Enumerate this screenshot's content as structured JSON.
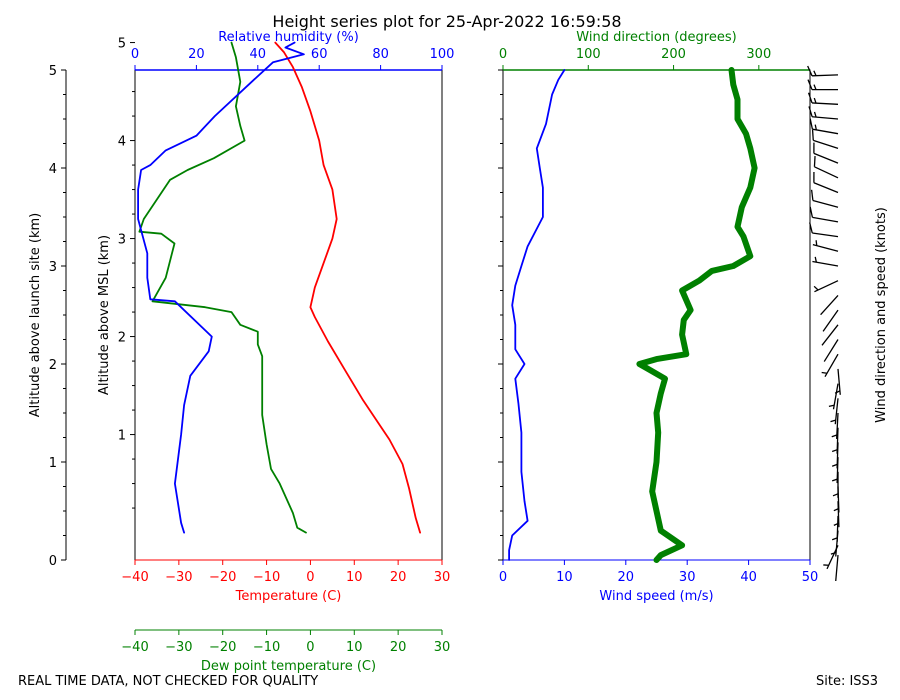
{
  "footer": {
    "left": "REAL TIME DATA, NOT CHECKED FOR QUALITY",
    "right": "Site: ISS3"
  },
  "colors": {
    "temp": "#ff0000",
    "dew": "#008000",
    "rh": "#0000ff",
    "wspd": "#0000ff",
    "wdir": "#008000",
    "barb": "#000000"
  },
  "chart_data": [
    {
      "type": "line",
      "title": "Height series plot for 25-Apr-2022 16:59:58",
      "axes": {
        "agl": {
          "label": "Altitude above launch site (km)",
          "ylim": [
            0,
            5
          ],
          "ticks": [
            0,
            1,
            2,
            3,
            4,
            5
          ]
        },
        "msl": {
          "label": "Altitude above MSL (km)",
          "ylim": [
            -0.28,
            4.72
          ],
          "ticks": [
            1,
            2,
            3,
            4,
            5
          ]
        },
        "temp": {
          "label": "Temperature (C)",
          "xlim": [
            -40,
            30
          ],
          "ticks": [
            -40,
            -30,
            -20,
            -10,
            0,
            10,
            20,
            30
          ]
        },
        "dew": {
          "label": "Dew point temperature (C)",
          "xlim": [
            -40,
            30
          ],
          "ticks": [
            -40,
            -30,
            -20,
            -10,
            0,
            10,
            20,
            30
          ]
        },
        "rh": {
          "label": "Relative humidity (%)",
          "xlim": [
            0,
            100
          ],
          "ticks": [
            0,
            20,
            40,
            60,
            80,
            100
          ]
        }
      },
      "series": [
        {
          "name": "Temperature",
          "axis": "temp",
          "points": [
            [
              25,
              0
            ],
            [
              24,
              0.15
            ],
            [
              22.5,
              0.45
            ],
            [
              21,
              0.7
            ],
            [
              18,
              0.95
            ],
            [
              12,
              1.35
            ],
            [
              8,
              1.65
            ],
            [
              4,
              1.95
            ],
            [
              1,
              2.2
            ],
            [
              0,
              2.3
            ],
            [
              1,
              2.5
            ],
            [
              3,
              2.75
            ],
            [
              5,
              3.0
            ],
            [
              6,
              3.2
            ],
            [
              5,
              3.5
            ],
            [
              3,
              3.75
            ],
            [
              2,
              4.0
            ],
            [
              0,
              4.3
            ],
            [
              -2,
              4.55
            ],
            [
              -4,
              4.75
            ],
            [
              -6,
              4.9
            ],
            [
              -8,
              5.0
            ]
          ]
        },
        {
          "name": "Dew point",
          "axis": "dew",
          "points": [
            [
              -1,
              0
            ],
            [
              -3,
              0.05
            ],
            [
              -4,
              0.2
            ],
            [
              -7,
              0.5
            ],
            [
              -9,
              0.65
            ],
            [
              -10,
              0.9
            ],
            [
              -11,
              1.2
            ],
            [
              -11,
              1.5
            ],
            [
              -11,
              1.8
            ],
            [
              -12,
              1.92
            ],
            [
              -12,
              2.05
            ],
            [
              -16,
              2.12
            ],
            [
              -18,
              2.25
            ],
            [
              -24,
              2.3
            ],
            [
              -36,
              2.36
            ],
            [
              -33,
              2.6
            ],
            [
              -31,
              2.95
            ],
            [
              -34,
              3.05
            ],
            [
              -39,
              3.07
            ],
            [
              -38,
              3.2
            ],
            [
              -32,
              3.6
            ],
            [
              -28,
              3.7
            ],
            [
              -22,
              3.82
            ],
            [
              -15,
              4.0
            ],
            [
              -16,
              4.15
            ],
            [
              -17,
              4.35
            ],
            [
              -16,
              4.6
            ],
            [
              -17,
              4.85
            ],
            [
              -18,
              5.0
            ]
          ]
        },
        {
          "name": "Relative humidity",
          "axis": "rh",
          "points": [
            [
              16,
              0
            ],
            [
              15,
              0.1
            ],
            [
              13,
              0.5
            ],
            [
              15,
              1.0
            ],
            [
              16,
              1.3
            ],
            [
              18,
              1.6
            ],
            [
              24,
              1.85
            ],
            [
              25,
              2.0
            ],
            [
              13,
              2.36
            ],
            [
              5,
              2.38
            ],
            [
              4,
              2.6
            ],
            [
              4,
              2.85
            ],
            [
              1,
              3.2
            ],
            [
              1,
              3.5
            ],
            [
              2,
              3.7
            ],
            [
              5,
              3.75
            ],
            [
              10,
              3.9
            ],
            [
              20,
              4.05
            ],
            [
              26,
              4.25
            ],
            [
              38,
              4.6
            ],
            [
              45,
              4.8
            ],
            [
              55,
              4.88
            ],
            [
              49,
              4.95
            ],
            [
              52,
              5.0
            ]
          ]
        }
      ]
    },
    {
      "type": "line",
      "axes": {
        "wspd": {
          "label": "Wind speed (m/s)",
          "xlim": [
            0,
            50
          ],
          "ticks": [
            0,
            10,
            20,
            30,
            40,
            50
          ]
        },
        "wdir": {
          "label": "Wind direction (degrees)",
          "xlim": [
            0,
            360
          ],
          "ticks": [
            0,
            100,
            200,
            300
          ]
        },
        "ylim": [
          0,
          5
        ]
      },
      "series": [
        {
          "name": "Wind speed",
          "axis": "wspd",
          "points": [
            [
              1,
              0
            ],
            [
              1,
              0.1
            ],
            [
              1.5,
              0.25
            ],
            [
              4,
              0.4
            ],
            [
              3.5,
              0.6
            ],
            [
              3,
              0.9
            ],
            [
              3,
              1.3
            ],
            [
              2.5,
              1.6
            ],
            [
              2,
              1.85
            ],
            [
              3.5,
              2.0
            ],
            [
              2,
              2.15
            ],
            [
              2,
              2.4
            ],
            [
              1.5,
              2.6
            ],
            [
              2,
              2.8
            ],
            [
              3,
              3.0
            ],
            [
              4,
              3.2
            ],
            [
              6.5,
              3.5
            ],
            [
              6.5,
              3.8
            ],
            [
              6,
              4.0
            ],
            [
              5.5,
              4.2
            ],
            [
              7,
              4.45
            ],
            [
              8,
              4.75
            ],
            [
              9,
              4.9
            ],
            [
              10,
              5.0
            ]
          ]
        },
        {
          "name": "Wind direction",
          "axis": "wdir",
          "points": [
            [
              180,
              0
            ],
            [
              185,
              0.05
            ],
            [
              210,
              0.15
            ],
            [
              185,
              0.3
            ],
            [
              180,
              0.5
            ],
            [
              175,
              0.7
            ],
            [
              180,
              1.0
            ],
            [
              182,
              1.3
            ],
            [
              180,
              1.5
            ],
            [
              185,
              1.7
            ],
            [
              190,
              1.85
            ],
            [
              170,
              1.95
            ],
            [
              160,
              2.0
            ],
            [
              180,
              2.05
            ],
            [
              215,
              2.1
            ],
            [
              210,
              2.3
            ],
            [
              212,
              2.45
            ],
            [
              220,
              2.55
            ],
            [
              210,
              2.75
            ],
            [
              230,
              2.85
            ],
            [
              245,
              2.95
            ],
            [
              270,
              3.0
            ],
            [
              290,
              3.1
            ],
            [
              282,
              3.3
            ],
            [
              275,
              3.4
            ],
            [
              280,
              3.6
            ],
            [
              290,
              3.8
            ],
            [
              295,
              4.0
            ],
            [
              290,
              4.2
            ],
            [
              285,
              4.35
            ],
            [
              275,
              4.5
            ],
            [
              275,
              4.7
            ],
            [
              270,
              4.85
            ],
            [
              268,
              5.0
            ]
          ]
        }
      ]
    },
    {
      "type": "scatter",
      "label": "Wind direction and speed (knots)",
      "ylim": [
        0,
        5
      ],
      "barbs": [
        {
          "y": 0.05,
          "dir": 185,
          "spd": 3
        },
        {
          "y": 0.15,
          "dir": 205,
          "spd": 5
        },
        {
          "y": 0.3,
          "dir": 185,
          "spd": 8
        },
        {
          "y": 0.45,
          "dir": 182,
          "spd": 8
        },
        {
          "y": 0.6,
          "dir": 178,
          "spd": 7
        },
        {
          "y": 0.75,
          "dir": 178,
          "spd": 7
        },
        {
          "y": 0.9,
          "dir": 180,
          "spd": 7
        },
        {
          "y": 1.05,
          "dir": 182,
          "spd": 7
        },
        {
          "y": 1.2,
          "dir": 182,
          "spd": 6
        },
        {
          "y": 1.35,
          "dir": 182,
          "spd": 6
        },
        {
          "y": 1.5,
          "dir": 183,
          "spd": 6
        },
        {
          "y": 1.65,
          "dir": 186,
          "spd": 5
        },
        {
          "y": 1.8,
          "dir": 190,
          "spd": 5
        },
        {
          "y": 1.95,
          "dir": 175,
          "spd": 5
        },
        {
          "y": 2.1,
          "dir": 210,
          "spd": 5
        },
        {
          "y": 2.25,
          "dir": 212,
          "spd": 4
        },
        {
          "y": 2.4,
          "dir": 218,
          "spd": 4
        },
        {
          "y": 2.55,
          "dir": 215,
          "spd": 4
        },
        {
          "y": 2.7,
          "dir": 222,
          "spd": 4
        },
        {
          "y": 2.85,
          "dir": 245,
          "spd": 5
        },
        {
          "y": 3.0,
          "dir": 280,
          "spd": 6
        },
        {
          "y": 3.15,
          "dir": 285,
          "spd": 8
        },
        {
          "y": 3.3,
          "dir": 278,
          "spd": 10
        },
        {
          "y": 3.45,
          "dir": 280,
          "spd": 13
        },
        {
          "y": 3.6,
          "dir": 285,
          "spd": 13
        },
        {
          "y": 3.75,
          "dir": 292,
          "spd": 13
        },
        {
          "y": 3.9,
          "dir": 295,
          "spd": 13
        },
        {
          "y": 4.05,
          "dir": 292,
          "spd": 13
        },
        {
          "y": 4.2,
          "dir": 288,
          "spd": 13
        },
        {
          "y": 4.35,
          "dir": 280,
          "spd": 15
        },
        {
          "y": 4.5,
          "dir": 275,
          "spd": 15
        },
        {
          "y": 4.65,
          "dir": 273,
          "spd": 17
        },
        {
          "y": 4.8,
          "dir": 270,
          "spd": 19
        },
        {
          "y": 4.95,
          "dir": 268,
          "spd": 19
        }
      ]
    }
  ]
}
